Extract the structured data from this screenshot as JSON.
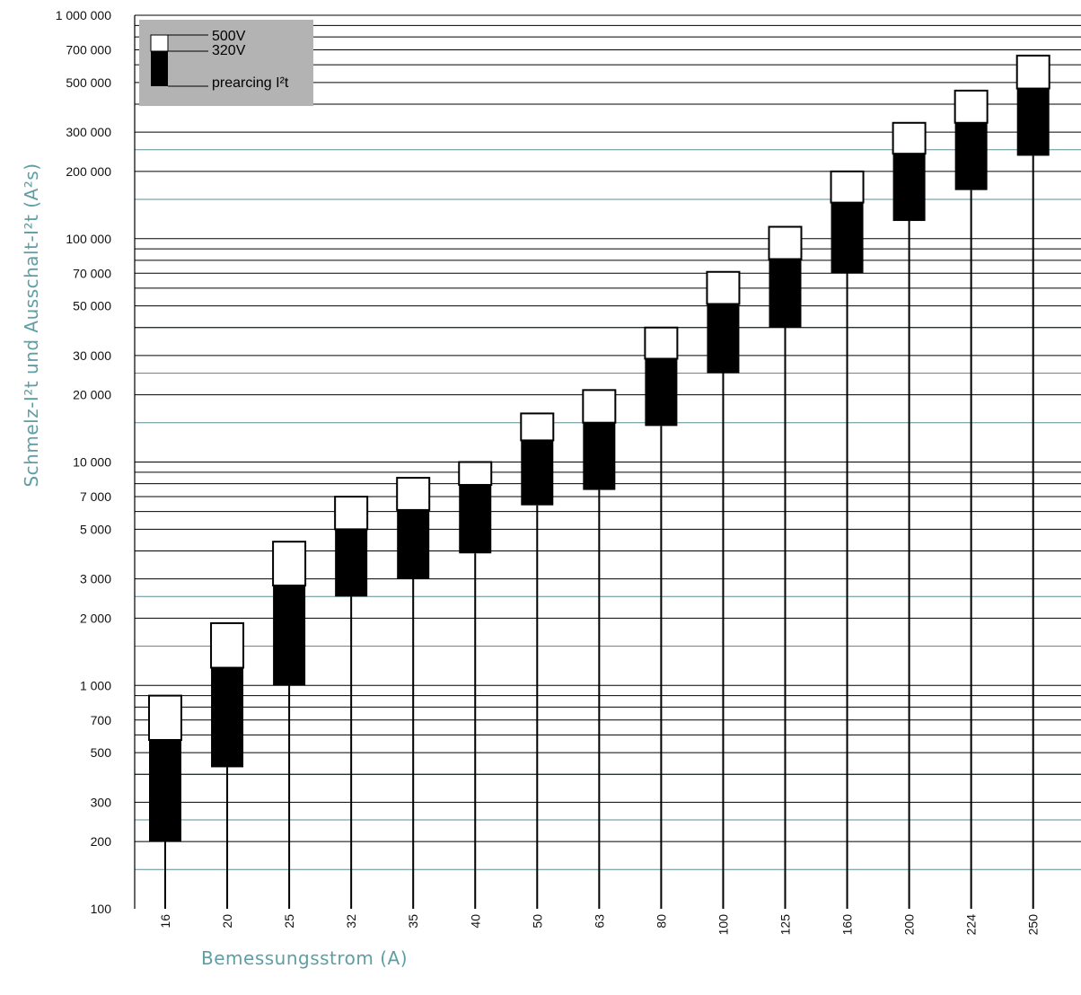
{
  "chart_data": {
    "type": "bar",
    "subtype": "floating-stacked-range",
    "title": "",
    "xlabel": "Bemessungsstrom (A)",
    "ylabel": "Schmelz-I²t und Ausschalt-I²t (A²s)",
    "yscale": "log",
    "ylim": [
      100,
      1000000
    ],
    "grid": true,
    "legend": {
      "position": "top-left",
      "entries": [
        "500V",
        "320V",
        "prearcing I²t"
      ]
    },
    "categories": [
      "16",
      "20",
      "25",
      "32",
      "35",
      "40",
      "50",
      "63",
      "80",
      "100",
      "125",
      "160",
      "200",
      "224",
      "250"
    ],
    "yticks": [
      {
        "value": 100,
        "label": "100"
      },
      {
        "value": 200,
        "label": "200"
      },
      {
        "value": 300,
        "label": "300"
      },
      {
        "value": 500,
        "label": "500"
      },
      {
        "value": 700,
        "label": "700"
      },
      {
        "value": 1000,
        "label": "1 000"
      },
      {
        "value": 2000,
        "label": "2 000"
      },
      {
        "value": 3000,
        "label": "3 000"
      },
      {
        "value": 5000,
        "label": "5 000"
      },
      {
        "value": 7000,
        "label": "7 000"
      },
      {
        "value": 10000,
        "label": "10 000"
      },
      {
        "value": 20000,
        "label": "20 000"
      },
      {
        "value": 30000,
        "label": "30 000"
      },
      {
        "value": 50000,
        "label": "50 000"
      },
      {
        "value": 70000,
        "label": "70 000"
      },
      {
        "value": 100000,
        "label": "100 000"
      },
      {
        "value": 200000,
        "label": "200 000"
      },
      {
        "value": 300000,
        "label": "300 000"
      },
      {
        "value": 500000,
        "label": "500 000"
      },
      {
        "value": 700000,
        "label": "700 000"
      },
      {
        "value": 1000000,
        "label": "1 000 000"
      }
    ],
    "series": [
      {
        "name": "prearcing I²t",
        "values": [
          200,
          430,
          1000,
          2500,
          3000,
          3900,
          6400,
          7500,
          14500,
          25000,
          40000,
          70000,
          120000,
          165000,
          235000
        ]
      },
      {
        "name": "320V",
        "values": [
          570,
          1200,
          2800,
          5000,
          6100,
          7900,
          12500,
          15000,
          29000,
          51000,
          81000,
          145000,
          240000,
          330000,
          470000
        ]
      },
      {
        "name": "500V",
        "values": [
          900,
          1900,
          4400,
          7000,
          8500,
          10000,
          16500,
          21000,
          40000,
          71000,
          113000,
          200000,
          330000,
          460000,
          660000
        ]
      }
    ],
    "colors": {
      "prearcing": "#000000",
      "320V": "#000000",
      "500V": "#ffffff",
      "legend_bg": "#b3b3b3",
      "minor_grid": "#5b8e93",
      "axis_label": "#5f9ea4"
    }
  }
}
